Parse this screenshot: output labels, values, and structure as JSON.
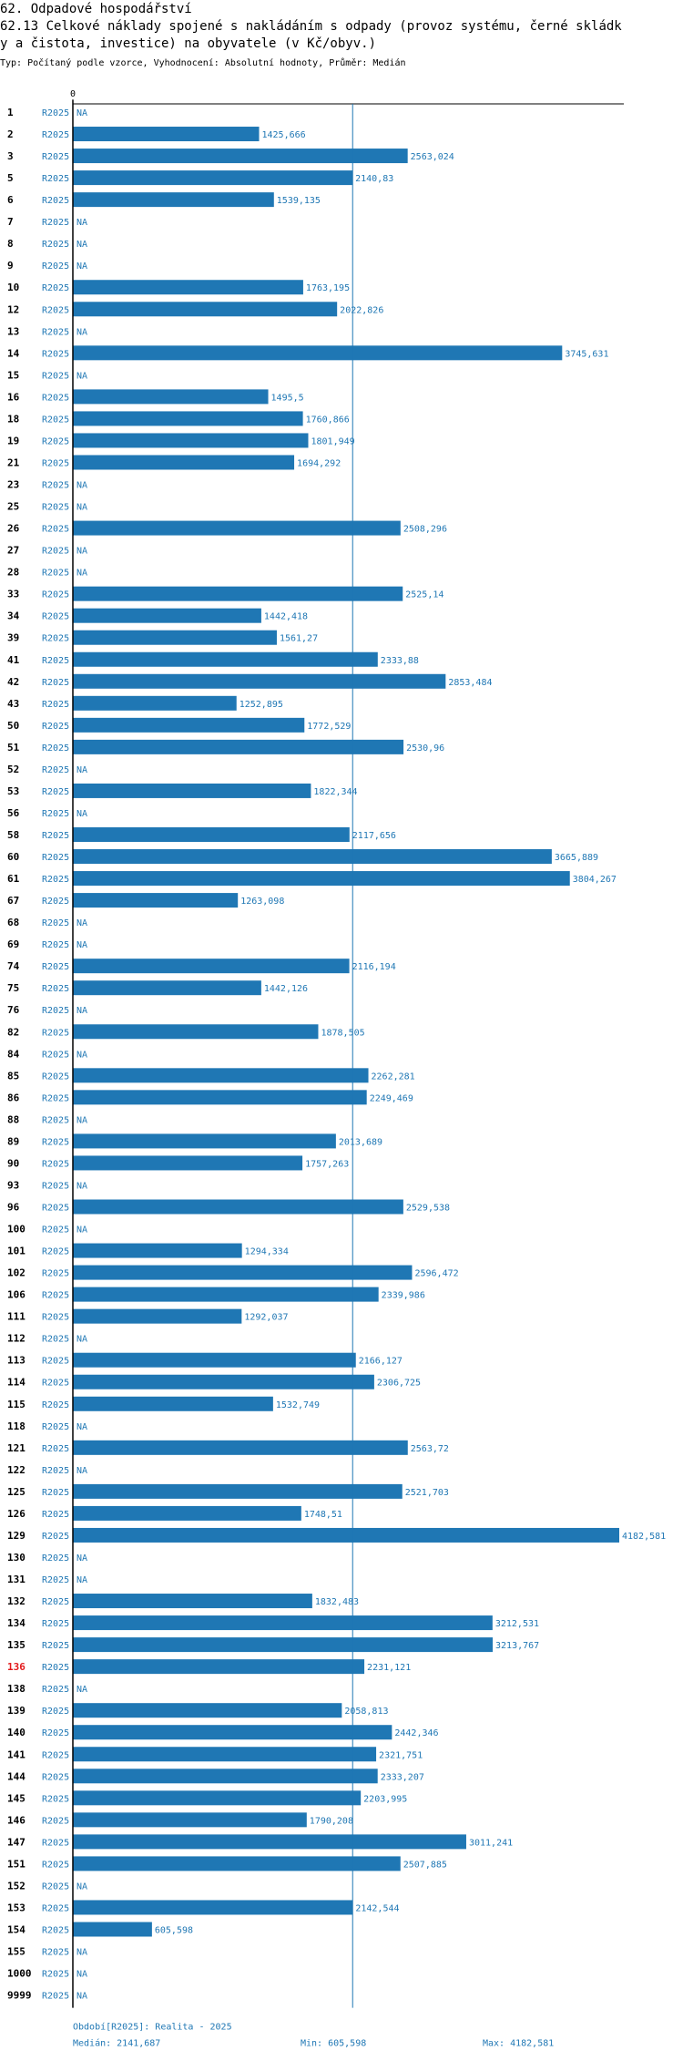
{
  "header": {
    "section": "62. Odpadové hospodářství",
    "title_line1": "62.13 Celkové náklady spojené s nakládáním s odpady (provoz systému, černé skládk",
    "title_line2": "y a čistota, investice) na obyvatele (v Kč/obyv.)",
    "type_line": "Typ: Počítaný podle vzorce, Vyhodnocení: Absolutní hodnoty, Průměr: Medián"
  },
  "colors": {
    "bar": "#1f77b4",
    "highlight": "#e31a1c",
    "text": "#000000"
  },
  "chart_data": {
    "type": "bar",
    "orientation": "horizontal",
    "series_label": "R2025",
    "na_label": "NA",
    "axis_zero_label": "0",
    "xlim": [
      0,
      4182.581
    ],
    "median": 2141.687,
    "highlight_id": "136",
    "rows": [
      {
        "id": "1",
        "value": null,
        "label": "NA"
      },
      {
        "id": "2",
        "value": 1425.666,
        "label": "1425,666"
      },
      {
        "id": "3",
        "value": 2563.024,
        "label": "2563,024"
      },
      {
        "id": "5",
        "value": 2140.83,
        "label": "2140,83"
      },
      {
        "id": "6",
        "value": 1539.135,
        "label": "1539,135"
      },
      {
        "id": "7",
        "value": null,
        "label": "NA"
      },
      {
        "id": "8",
        "value": null,
        "label": "NA"
      },
      {
        "id": "9",
        "value": null,
        "label": "NA"
      },
      {
        "id": "10",
        "value": 1763.195,
        "label": "1763,195"
      },
      {
        "id": "12",
        "value": 2022.826,
        "label": "2022,826"
      },
      {
        "id": "13",
        "value": null,
        "label": "NA"
      },
      {
        "id": "14",
        "value": 3745.631,
        "label": "3745,631"
      },
      {
        "id": "15",
        "value": null,
        "label": "NA"
      },
      {
        "id": "16",
        "value": 1495.5,
        "label": "1495,5"
      },
      {
        "id": "18",
        "value": 1760.866,
        "label": "1760,866"
      },
      {
        "id": "19",
        "value": 1801.949,
        "label": "1801,949"
      },
      {
        "id": "21",
        "value": 1694.292,
        "label": "1694,292"
      },
      {
        "id": "23",
        "value": null,
        "label": "NA"
      },
      {
        "id": "25",
        "value": null,
        "label": "NA"
      },
      {
        "id": "26",
        "value": 2508.296,
        "label": "2508,296"
      },
      {
        "id": "27",
        "value": null,
        "label": "NA"
      },
      {
        "id": "28",
        "value": null,
        "label": "NA"
      },
      {
        "id": "33",
        "value": 2525.14,
        "label": "2525,14"
      },
      {
        "id": "34",
        "value": 1442.418,
        "label": "1442,418"
      },
      {
        "id": "39",
        "value": 1561.27,
        "label": "1561,27"
      },
      {
        "id": "41",
        "value": 2333.88,
        "label": "2333,88"
      },
      {
        "id": "42",
        "value": 2853.484,
        "label": "2853,484"
      },
      {
        "id": "43",
        "value": 1252.895,
        "label": "1252,895"
      },
      {
        "id": "50",
        "value": 1772.529,
        "label": "1772,529"
      },
      {
        "id": "51",
        "value": 2530.96,
        "label": "2530,96"
      },
      {
        "id": "52",
        "value": null,
        "label": "NA"
      },
      {
        "id": "53",
        "value": 1822.344,
        "label": "1822,344"
      },
      {
        "id": "56",
        "value": null,
        "label": "NA"
      },
      {
        "id": "58",
        "value": 2117.656,
        "label": "2117,656"
      },
      {
        "id": "60",
        "value": 3665.889,
        "label": "3665,889"
      },
      {
        "id": "61",
        "value": 3804.267,
        "label": "3804,267"
      },
      {
        "id": "67",
        "value": 1263.098,
        "label": "1263,098"
      },
      {
        "id": "68",
        "value": null,
        "label": "NA"
      },
      {
        "id": "69",
        "value": null,
        "label": "NA"
      },
      {
        "id": "74",
        "value": 2116.194,
        "label": "2116,194"
      },
      {
        "id": "75",
        "value": 1442.126,
        "label": "1442,126"
      },
      {
        "id": "76",
        "value": null,
        "label": "NA"
      },
      {
        "id": "82",
        "value": 1878.505,
        "label": "1878,505"
      },
      {
        "id": "84",
        "value": null,
        "label": "NA"
      },
      {
        "id": "85",
        "value": 2262.281,
        "label": "2262,281"
      },
      {
        "id": "86",
        "value": 2249.469,
        "label": "2249,469"
      },
      {
        "id": "88",
        "value": null,
        "label": "NA"
      },
      {
        "id": "89",
        "value": 2013.689,
        "label": "2013,689"
      },
      {
        "id": "90",
        "value": 1757.263,
        "label": "1757,263"
      },
      {
        "id": "93",
        "value": null,
        "label": "NA"
      },
      {
        "id": "96",
        "value": 2529.538,
        "label": "2529,538"
      },
      {
        "id": "100",
        "value": null,
        "label": "NA"
      },
      {
        "id": "101",
        "value": 1294.334,
        "label": "1294,334"
      },
      {
        "id": "102",
        "value": 2596.472,
        "label": "2596,472"
      },
      {
        "id": "106",
        "value": 2339.986,
        "label": "2339,986"
      },
      {
        "id": "111",
        "value": 1292.037,
        "label": "1292,037"
      },
      {
        "id": "112",
        "value": null,
        "label": "NA"
      },
      {
        "id": "113",
        "value": 2166.127,
        "label": "2166,127"
      },
      {
        "id": "114",
        "value": 2306.725,
        "label": "2306,725"
      },
      {
        "id": "115",
        "value": 1532.749,
        "label": "1532,749"
      },
      {
        "id": "118",
        "value": null,
        "label": "NA"
      },
      {
        "id": "121",
        "value": 2563.72,
        "label": "2563,72"
      },
      {
        "id": "122",
        "value": null,
        "label": "NA"
      },
      {
        "id": "125",
        "value": 2521.703,
        "label": "2521,703"
      },
      {
        "id": "126",
        "value": 1748.51,
        "label": "1748,51"
      },
      {
        "id": "129",
        "value": 4182.581,
        "label": "4182,581"
      },
      {
        "id": "130",
        "value": null,
        "label": "NA"
      },
      {
        "id": "131",
        "value": null,
        "label": "NA"
      },
      {
        "id": "132",
        "value": 1832.483,
        "label": "1832,483"
      },
      {
        "id": "134",
        "value": 3212.531,
        "label": "3212,531"
      },
      {
        "id": "135",
        "value": 3213.767,
        "label": "3213,767"
      },
      {
        "id": "136",
        "value": 2231.121,
        "label": "2231,121"
      },
      {
        "id": "138",
        "value": null,
        "label": "NA"
      },
      {
        "id": "139",
        "value": 2058.813,
        "label": "2058,813"
      },
      {
        "id": "140",
        "value": 2442.346,
        "label": "2442,346"
      },
      {
        "id": "141",
        "value": 2321.751,
        "label": "2321,751"
      },
      {
        "id": "144",
        "value": 2333.207,
        "label": "2333,207"
      },
      {
        "id": "145",
        "value": 2203.995,
        "label": "2203,995"
      },
      {
        "id": "146",
        "value": 1790.208,
        "label": "1790,208"
      },
      {
        "id": "147",
        "value": 3011.241,
        "label": "3011,241"
      },
      {
        "id": "151",
        "value": 2507.885,
        "label": "2507,885"
      },
      {
        "id": "152",
        "value": null,
        "label": "NA"
      },
      {
        "id": "153",
        "value": 2142.544,
        "label": "2142,544"
      },
      {
        "id": "154",
        "value": 605.598,
        "label": "605,598"
      },
      {
        "id": "155",
        "value": null,
        "label": "NA"
      },
      {
        "id": "1000",
        "value": null,
        "label": "NA"
      },
      {
        "id": "9999",
        "value": null,
        "label": "NA"
      }
    ]
  },
  "footer": {
    "period": "Období[R2025]: Realita - 2025",
    "median": "Medián: 2141,687",
    "min": "Min: 605,598",
    "max": "Max: 4182,581"
  }
}
